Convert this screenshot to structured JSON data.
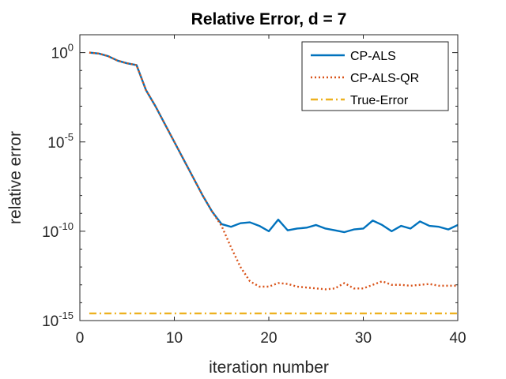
{
  "chart_data": {
    "type": "line",
    "title": "Relative Error, d = 7",
    "xlabel": "iteration number",
    "ylabel": "relative error",
    "yscale": "log",
    "xlim": [
      0,
      40
    ],
    "ylim_exponent": [
      -15,
      1
    ],
    "xticks": [
      {
        "value": 0,
        "label": "0"
      },
      {
        "value": 10,
        "label": "10"
      },
      {
        "value": 20,
        "label": "20"
      },
      {
        "value": 30,
        "label": "30"
      },
      {
        "value": 40,
        "label": "40"
      }
    ],
    "yticks": [
      {
        "exponent": 0,
        "base": "10",
        "sup": "0"
      },
      {
        "exponent": -5,
        "base": "10",
        "sup": "-5"
      },
      {
        "exponent": -10,
        "base": "10",
        "sup": "-10"
      },
      {
        "exponent": -15,
        "base": "10",
        "sup": "-15"
      }
    ],
    "grid": false,
    "legend_position": "top-right",
    "series": [
      {
        "name": "CP-ALS",
        "color": "#0072BD",
        "style": "solid",
        "x": [
          1,
          2,
          3,
          4,
          5,
          6,
          7,
          8,
          9,
          10,
          11,
          12,
          13,
          14,
          15,
          16,
          17,
          18,
          19,
          20,
          21,
          22,
          23,
          24,
          25,
          26,
          27,
          28,
          29,
          30,
          31,
          32,
          33,
          34,
          35,
          36,
          37,
          38,
          39,
          40
        ],
        "log10_y": [
          0,
          -0.05,
          -0.2,
          -0.45,
          -0.6,
          -0.7,
          -2.1,
          -3.0,
          -4.0,
          -5.0,
          -6.0,
          -7.0,
          -8.0,
          -8.9,
          -9.6,
          -9.75,
          -9.55,
          -9.5,
          -9.7,
          -10.0,
          -9.35,
          -9.95,
          -9.85,
          -9.8,
          -9.65,
          -9.85,
          -9.95,
          -10.05,
          -9.9,
          -9.85,
          -9.4,
          -9.65,
          -10.0,
          -9.7,
          -9.85,
          -9.45,
          -9.7,
          -9.75,
          -9.9,
          -9.65
        ]
      },
      {
        "name": "CP-ALS-QR",
        "color": "#D95319",
        "style": "dotted",
        "x": [
          1,
          2,
          3,
          4,
          5,
          6,
          7,
          8,
          9,
          10,
          11,
          12,
          13,
          14,
          15,
          16,
          17,
          18,
          19,
          20,
          21,
          22,
          23,
          24,
          25,
          26,
          27,
          28,
          29,
          30,
          31,
          32,
          33,
          34,
          35,
          36,
          37,
          38,
          39,
          40
        ],
        "log10_y": [
          0,
          -0.05,
          -0.2,
          -0.45,
          -0.6,
          -0.7,
          -2.1,
          -3.0,
          -4.0,
          -5.0,
          -6.0,
          -7.0,
          -8.0,
          -8.9,
          -9.7,
          -10.9,
          -12.0,
          -12.8,
          -13.1,
          -13.1,
          -12.9,
          -12.95,
          -13.1,
          -13.15,
          -13.2,
          -13.25,
          -13.2,
          -12.9,
          -13.2,
          -13.2,
          -13.0,
          -12.8,
          -13.0,
          -13.0,
          -13.05,
          -13.0,
          -12.95,
          -13.05,
          -13.05,
          -13.05
        ]
      },
      {
        "name": "True-Error",
        "color": "#EDB120",
        "style": "dashdot",
        "x": [
          1,
          40
        ],
        "log10_y": [
          -14.6,
          -14.6
        ]
      }
    ]
  }
}
